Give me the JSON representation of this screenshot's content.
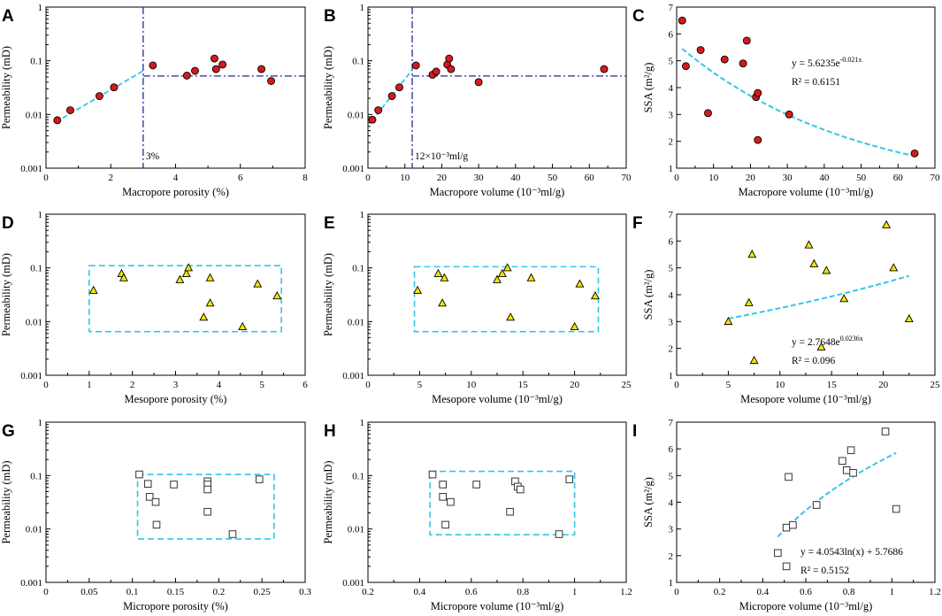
{
  "figure": {
    "colors": {
      "red": "#d7191c",
      "yellow": "#f2e600",
      "cyan": "#33c6e6",
      "navy": "#1f2a9e",
      "white": "#ffffff"
    }
  },
  "chart_data": [
    {
      "id": "A",
      "type": "scatter",
      "xlabel": "Macropore porosity (%)",
      "ylabel": "Permeability (mD)",
      "xlim": [
        0,
        8
      ],
      "xticks": [
        "0",
        "2",
        "4",
        "6",
        "8"
      ],
      "yscale": "log",
      "ylim": [
        0.001,
        1
      ],
      "yticks": [
        "0.001",
        "0.01",
        "0.1",
        "1"
      ],
      "marker": "circle",
      "marker_color": "#d7191c",
      "points": [
        [
          0.35,
          0.0078
        ],
        [
          0.75,
          0.012
        ],
        [
          1.65,
          0.022
        ],
        [
          2.1,
          0.032
        ],
        [
          3.3,
          0.082
        ],
        [
          4.35,
          0.053
        ],
        [
          4.6,
          0.065
        ],
        [
          5.2,
          0.11
        ],
        [
          5.25,
          0.07
        ],
        [
          5.45,
          0.085
        ],
        [
          6.65,
          0.07
        ],
        [
          6.95,
          0.042
        ]
      ],
      "cutoff_x": 3,
      "cutoff_y": 0.052,
      "cutoff_label": "3%",
      "trend_segments": [
        [
          [
            0.3,
            0.0072
          ],
          [
            3.0,
            0.065
          ]
        ]
      ]
    },
    {
      "id": "B",
      "type": "scatter",
      "xlabel": "Macropore volume (10⁻³ml/g)",
      "ylabel": "Permeability (mD)",
      "xlim": [
        0,
        70
      ],
      "xticks": [
        "0",
        "10",
        "20",
        "30",
        "40",
        "50",
        "60",
        "70"
      ],
      "yscale": "log",
      "ylim": [
        0.001,
        1
      ],
      "yticks": [
        "0.001",
        "0.01",
        "0.1",
        "1"
      ],
      "marker": "circle",
      "marker_color": "#d7191c",
      "points": [
        [
          1.2,
          0.008
        ],
        [
          2.8,
          0.012
        ],
        [
          6.5,
          0.022
        ],
        [
          8.5,
          0.032
        ],
        [
          13,
          0.082
        ],
        [
          17.5,
          0.055
        ],
        [
          18.5,
          0.063
        ],
        [
          21.5,
          0.085
        ],
        [
          22,
          0.11
        ],
        [
          22.5,
          0.07
        ],
        [
          30,
          0.04
        ],
        [
          64,
          0.07
        ]
      ],
      "cutoff_x": 12,
      "cutoff_y": 0.052,
      "cutoff_label": "12×10⁻³ml/g",
      "trend_segments": [
        [
          [
            1,
            0.0075
          ],
          [
            12,
            0.068
          ]
        ]
      ]
    },
    {
      "id": "C",
      "type": "scatter",
      "xlabel": "Macropore volume (10⁻³ml/g)",
      "ylabel": "SSA (m²/g)",
      "xlim": [
        0,
        70
      ],
      "xticks": [
        "0",
        "10",
        "20",
        "30",
        "40",
        "50",
        "60",
        "70"
      ],
      "yscale": "linear",
      "ylim": [
        1,
        7
      ],
      "yticks": [
        "1",
        "2",
        "3",
        "4",
        "5",
        "6",
        "7"
      ],
      "marker": "circle",
      "marker_color": "#d7191c",
      "points": [
        [
          1.5,
          6.5
        ],
        [
          2.5,
          4.8
        ],
        [
          6.5,
          5.4
        ],
        [
          8.5,
          3.05
        ],
        [
          13,
          5.05
        ],
        [
          18,
          4.9
        ],
        [
          19,
          5.75
        ],
        [
          21.5,
          3.65
        ],
        [
          22,
          3.8
        ],
        [
          22,
          2.05
        ],
        [
          30.5,
          3.0
        ],
        [
          64.5,
          1.55
        ]
      ],
      "fit": {
        "kind": "exp",
        "a": 5.6235,
        "b": -0.021,
        "x_from": 1.5,
        "x_to": 64.5
      },
      "equation": "y = 5.6235e",
      "eq_exp": "-0.021x",
      "r2": "R² = 0.6151"
    },
    {
      "id": "D",
      "type": "scatter",
      "xlabel": "Mesopore porosity (%)",
      "ylabel": "Permeability (mD)",
      "xlim": [
        0,
        6
      ],
      "xticks": [
        "0",
        "1",
        "2",
        "3",
        "4",
        "5",
        "6"
      ],
      "yscale": "log",
      "ylim": [
        0.001,
        1
      ],
      "yticks": [
        "0.001",
        "0.01",
        "0.1",
        "1"
      ],
      "marker": "triangle",
      "marker_color": "#f2e600",
      "points": [
        [
          1.1,
          0.038
        ],
        [
          1.75,
          0.078
        ],
        [
          1.8,
          0.065
        ],
        [
          3.1,
          0.06
        ],
        [
          3.25,
          0.078
        ],
        [
          3.3,
          0.1
        ],
        [
          3.65,
          0.012
        ],
        [
          3.8,
          0.065
        ],
        [
          3.8,
          0.022
        ],
        [
          4.55,
          0.008
        ],
        [
          4.9,
          0.05
        ],
        [
          5.35,
          0.03
        ]
      ],
      "box": {
        "x": [
          1.0,
          5.45
        ],
        "y": [
          0.0065,
          0.11
        ]
      }
    },
    {
      "id": "E",
      "type": "scatter",
      "xlabel": "Mesopore volume (10⁻³ml/g)",
      "ylabel": "Permeability (mD)",
      "xlim": [
        0,
        25
      ],
      "xticks": [
        "0",
        "5",
        "10",
        "15",
        "20",
        "25"
      ],
      "yscale": "log",
      "ylim": [
        0.001,
        1
      ],
      "yticks": [
        "0.001",
        "0.01",
        "0.1",
        "1"
      ],
      "marker": "triangle",
      "marker_color": "#f2e600",
      "points": [
        [
          4.8,
          0.038
        ],
        [
          6.8,
          0.078
        ],
        [
          7.2,
          0.022
        ],
        [
          7.4,
          0.065
        ],
        [
          12.5,
          0.06
        ],
        [
          13,
          0.078
        ],
        [
          13.5,
          0.1
        ],
        [
          13.8,
          0.012
        ],
        [
          15.8,
          0.065
        ],
        [
          20,
          0.008
        ],
        [
          20.5,
          0.05
        ],
        [
          22,
          0.03
        ]
      ],
      "box": {
        "x": [
          4.5,
          22.3
        ],
        "y": [
          0.0065,
          0.105
        ]
      }
    },
    {
      "id": "F",
      "type": "scatter",
      "xlabel": "Mesopore volume (10⁻³ml/g)",
      "ylabel": "SSA (m²/g)",
      "xlim": [
        0,
        25
      ],
      "xticks": [
        "0",
        "5",
        "10",
        "15",
        "20",
        "25"
      ],
      "yscale": "linear",
      "ylim": [
        1,
        7
      ],
      "yticks": [
        "1",
        "2",
        "3",
        "4",
        "5",
        "6",
        "7"
      ],
      "marker": "triangle",
      "marker_color": "#f2e600",
      "points": [
        [
          5,
          3.0
        ],
        [
          7,
          3.7
        ],
        [
          7.3,
          5.5
        ],
        [
          7.5,
          1.55
        ],
        [
          12.8,
          5.85
        ],
        [
          13.3,
          5.15
        ],
        [
          14,
          2.05
        ],
        [
          14.5,
          4.9
        ],
        [
          16.2,
          3.85
        ],
        [
          20.3,
          6.6
        ],
        [
          21,
          5.0
        ],
        [
          22.5,
          3.1
        ]
      ],
      "fit": {
        "kind": "exp",
        "a": 2.7648,
        "b": 0.0236,
        "x_from": 5,
        "x_to": 22.5
      },
      "equation": "y = 2.7648e",
      "eq_exp": "0.0236x",
      "r2": "R² = 0.096"
    },
    {
      "id": "G",
      "type": "scatter",
      "xlabel": "Micropore porosity (%)",
      "ylabel": "Permeability (mD)",
      "xlim": [
        0,
        0.3
      ],
      "xticks": [
        "0",
        "0.05",
        "0.1",
        "0.15",
        "0.2",
        "0.25",
        "0.3"
      ],
      "yscale": "log",
      "ylim": [
        0.001,
        1
      ],
      "yticks": [
        "0.001",
        "0.01",
        "0.1",
        "1"
      ],
      "marker": "square",
      "marker_color": "#ffffff",
      "points": [
        [
          0.108,
          0.105
        ],
        [
          0.118,
          0.07
        ],
        [
          0.12,
          0.04
        ],
        [
          0.127,
          0.032
        ],
        [
          0.128,
          0.012
        ],
        [
          0.148,
          0.068
        ],
        [
          0.187,
          0.078
        ],
        [
          0.187,
          0.068
        ],
        [
          0.187,
          0.055
        ],
        [
          0.187,
          0.021
        ],
        [
          0.216,
          0.008
        ],
        [
          0.247,
          0.085
        ]
      ],
      "box": {
        "x": [
          0.106,
          0.264
        ],
        "y": [
          0.0065,
          0.105
        ]
      }
    },
    {
      "id": "H",
      "type": "scatter",
      "xlabel": "Micropore volume (10⁻³ml/g)",
      "ylabel": "Permeability (mD)",
      "xlim": [
        0.2,
        1.2
      ],
      "xticks": [
        "0.2",
        "0.4",
        "0.6",
        "0.8",
        "1",
        "1.2"
      ],
      "yscale": "log",
      "ylim": [
        0.001,
        1
      ],
      "yticks": [
        "0.001",
        "0.01",
        "0.1",
        "1"
      ],
      "marker": "square",
      "marker_color": "#ffffff",
      "points": [
        [
          0.45,
          0.105
        ],
        [
          0.49,
          0.068
        ],
        [
          0.49,
          0.04
        ],
        [
          0.5,
          0.012
        ],
        [
          0.52,
          0.032
        ],
        [
          0.62,
          0.068
        ],
        [
          0.75,
          0.021
        ],
        [
          0.77,
          0.078
        ],
        [
          0.78,
          0.062
        ],
        [
          0.79,
          0.055
        ],
        [
          0.94,
          0.008
        ],
        [
          0.98,
          0.085
        ]
      ],
      "box": {
        "x": [
          0.44,
          1.0
        ],
        "y": [
          0.0078,
          0.12
        ]
      }
    },
    {
      "id": "I",
      "type": "scatter",
      "xlabel": "Micropore volume (10⁻³ml/g)",
      "ylabel": "SSA (m²/g)",
      "xlim": [
        0,
        1.2
      ],
      "xticks": [
        "0",
        "0.2",
        "0.4",
        "0.6",
        "0.8",
        "1",
        "1.2"
      ],
      "yscale": "linear",
      "ylim": [
        1,
        7
      ],
      "yticks": [
        "1",
        "2",
        "3",
        "4",
        "5",
        "6",
        "7"
      ],
      "marker": "square",
      "marker_color": "#ffffff",
      "points": [
        [
          0.47,
          2.1
        ],
        [
          0.51,
          3.05
        ],
        [
          0.51,
          1.6
        ],
        [
          0.52,
          4.95
        ],
        [
          0.54,
          3.15
        ],
        [
          0.65,
          3.9
        ],
        [
          0.77,
          5.55
        ],
        [
          0.79,
          5.2
        ],
        [
          0.81,
          5.95
        ],
        [
          0.82,
          5.1
        ],
        [
          0.97,
          6.65
        ],
        [
          1.02,
          3.75
        ]
      ],
      "fit": {
        "kind": "log",
        "a": 4.0543,
        "b": 5.7686,
        "x_from": 0.47,
        "x_to": 1.02
      },
      "equation": "y = 4.0543ln(x) + 5.7686",
      "eq_exp": "",
      "r2": "R² = 0.5152"
    }
  ]
}
